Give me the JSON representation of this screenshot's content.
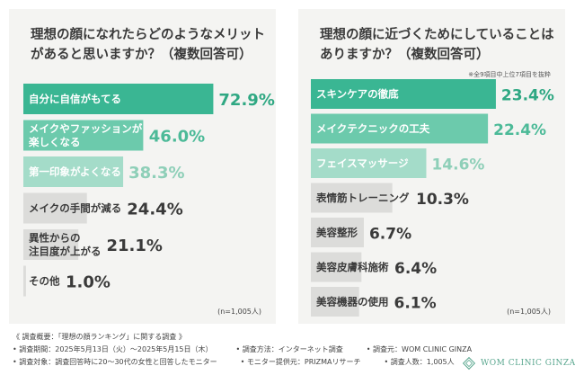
{
  "colors": {
    "bar_strong": "#3ab693",
    "bar_mid": "#6ccaac",
    "bar_light": "#a4dcc9",
    "bar_gray": "#dcdcda",
    "value_strong": "#2fa883",
    "value_mid": "#4cba98",
    "value_light": "#8ecfb8",
    "value_gray": "#3a3a3a",
    "brand": "#5aa78f"
  },
  "chart_data": [
    {
      "type": "bar",
      "orientation": "horizontal",
      "title": "理想の顔になれたらどのようなメリットがあると思いますか？（複数回答可）",
      "note": "",
      "categories": [
        [
          "自分に自信がもてる"
        ],
        [
          "メイクやファッションが",
          "楽しくなる"
        ],
        [
          "第一印象がよくなる"
        ],
        [
          "メイクの手間が減る"
        ],
        [
          "異性からの",
          "注目度が上がる"
        ],
        [
          "その他"
        ]
      ],
      "values": [
        72.9,
        46.0,
        38.3,
        24.4,
        21.1,
        1.0
      ],
      "value_labels": [
        "72.9%",
        "46.0%",
        "38.3%",
        "24.4%",
        "21.1%",
        "1.0%"
      ],
      "styles": [
        "strong",
        "mid",
        "light",
        "gray",
        "gray",
        "gray"
      ],
      "sample_size": "(n=1,005人)",
      "xlim": [
        0,
        100
      ]
    },
    {
      "type": "bar",
      "orientation": "horizontal",
      "title": "理想の顔に近づくためにしていることはありますか？（複数回答可）",
      "note": "※全9項目中上位7項目を抜粋",
      "categories": [
        [
          "スキンケアの徹底"
        ],
        [
          "メイクテクニックの工夫"
        ],
        [
          "フェイスマッサージ"
        ],
        [
          "表情筋トレーニング"
        ],
        [
          "美容整形"
        ],
        [
          "美容皮膚科施術"
        ],
        [
          "美容機器の使用"
        ]
      ],
      "values": [
        23.4,
        22.4,
        14.6,
        10.3,
        6.7,
        6.4,
        6.1
      ],
      "value_labels": [
        "23.4%",
        "22.4%",
        "14.6%",
        "10.3%",
        "6.7%",
        "6.4%",
        "6.1%"
      ],
      "styles": [
        "strong",
        "mid",
        "light",
        "gray",
        "gray",
        "gray",
        "gray"
      ],
      "sample_size": "(n=1,005人)",
      "xlim": [
        0,
        25
      ]
    }
  ],
  "footer": {
    "survey_overview": "《 調査概要：「理想の顔ランキング」に関する調査 》",
    "survey_period": "• 調査期間：2025年5月13日（火）～2025年5月15日（木）",
    "survey_method": "• 調査方法：インターネット調査",
    "survey_by": "• 調査元：WOM CLINIC GINZA",
    "survey_target": "• 調査対象：調査回答時に20～30代の女性と回答したモニター",
    "monitor_provider": "• モニター提供元：PRIZMAリサーチ",
    "respondents": "• 調査人数：1,005人"
  },
  "brand": {
    "name": "WOM CLINIC GINZA"
  }
}
